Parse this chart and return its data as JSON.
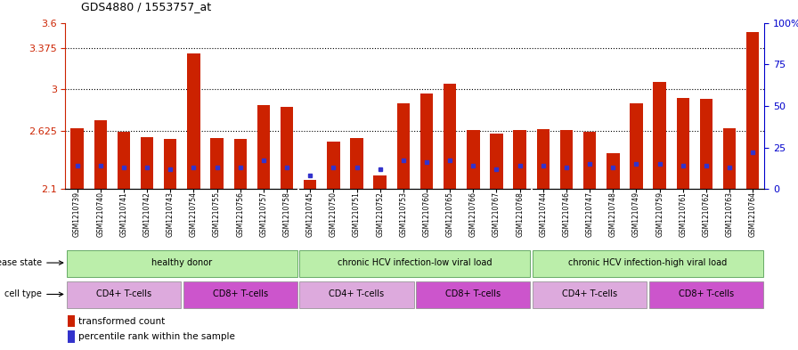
{
  "title": "GDS4880 / 1553757_at",
  "samples": [
    "GSM1210739",
    "GSM1210740",
    "GSM1210741",
    "GSM1210742",
    "GSM1210743",
    "GSM1210754",
    "GSM1210755",
    "GSM1210756",
    "GSM1210757",
    "GSM1210758",
    "GSM1210745",
    "GSM1210750",
    "GSM1210751",
    "GSM1210752",
    "GSM1210753",
    "GSM1210760",
    "GSM1210765",
    "GSM1210766",
    "GSM1210767",
    "GSM1210768",
    "GSM1210744",
    "GSM1210746",
    "GSM1210747",
    "GSM1210748",
    "GSM1210749",
    "GSM1210759",
    "GSM1210761",
    "GSM1210762",
    "GSM1210763",
    "GSM1210764"
  ],
  "transformed_count": [
    2.65,
    2.72,
    2.62,
    2.57,
    2.55,
    3.32,
    2.56,
    2.55,
    2.86,
    2.84,
    2.18,
    2.53,
    2.56,
    2.22,
    2.87,
    2.96,
    3.05,
    2.63,
    2.6,
    2.63,
    2.64,
    2.63,
    2.62,
    2.42,
    2.87,
    3.07,
    2.92,
    2.91,
    2.65,
    3.52
  ],
  "percentile_rank": [
    14,
    14,
    13,
    13,
    12,
    13,
    13,
    13,
    17,
    13,
    8,
    13,
    13,
    12,
    17,
    16,
    17,
    14,
    12,
    14,
    14,
    13,
    15,
    13,
    15,
    15,
    14,
    14,
    13,
    22
  ],
  "ylim_left": [
    2.1,
    3.6
  ],
  "yticks_left": [
    2.1,
    2.625,
    3.0,
    3.375,
    3.6
  ],
  "ytick_labels_left": [
    "2.1",
    "2.625",
    "3",
    "3.375",
    "3.6"
  ],
  "ylim_right": [
    0,
    100
  ],
  "yticks_right": [
    0,
    25,
    50,
    75,
    100
  ],
  "ytick_labels_right": [
    "0",
    "25",
    "50",
    "75",
    "100%"
  ],
  "bar_color": "#cc2200",
  "marker_color": "#3333cc",
  "disease_state_groups": [
    {
      "label": "healthy donor",
      "start": 0,
      "end": 10
    },
    {
      "label": "chronic HCV infection-low viral load",
      "start": 10,
      "end": 20
    },
    {
      "label": "chronic HCV infection-high viral load",
      "start": 20,
      "end": 30
    }
  ],
  "cell_type_groups": [
    {
      "label": "CD4+ T-cells",
      "start": 0,
      "end": 5,
      "color": "#ddaadd"
    },
    {
      "label": "CD8+ T-cells",
      "start": 5,
      "end": 10,
      "color": "#cc55cc"
    },
    {
      "label": "CD4+ T-cells",
      "start": 10,
      "end": 15,
      "color": "#ddaadd"
    },
    {
      "label": "CD8+ T-cells",
      "start": 15,
      "end": 20,
      "color": "#cc55cc"
    },
    {
      "label": "CD4+ T-cells",
      "start": 20,
      "end": 25,
      "color": "#ddaadd"
    },
    {
      "label": "CD8+ T-cells",
      "start": 25,
      "end": 30,
      "color": "#cc55cc"
    }
  ],
  "legend_items": [
    {
      "label": "transformed count",
      "color": "#cc2200"
    },
    {
      "label": "percentile rank within the sample",
      "color": "#3333cc"
    }
  ],
  "ds_color": "#bbeeaa",
  "ds_border_color": "#66aa66",
  "xtick_bg_color": "#dddddd",
  "bg_color": "#ffffff"
}
